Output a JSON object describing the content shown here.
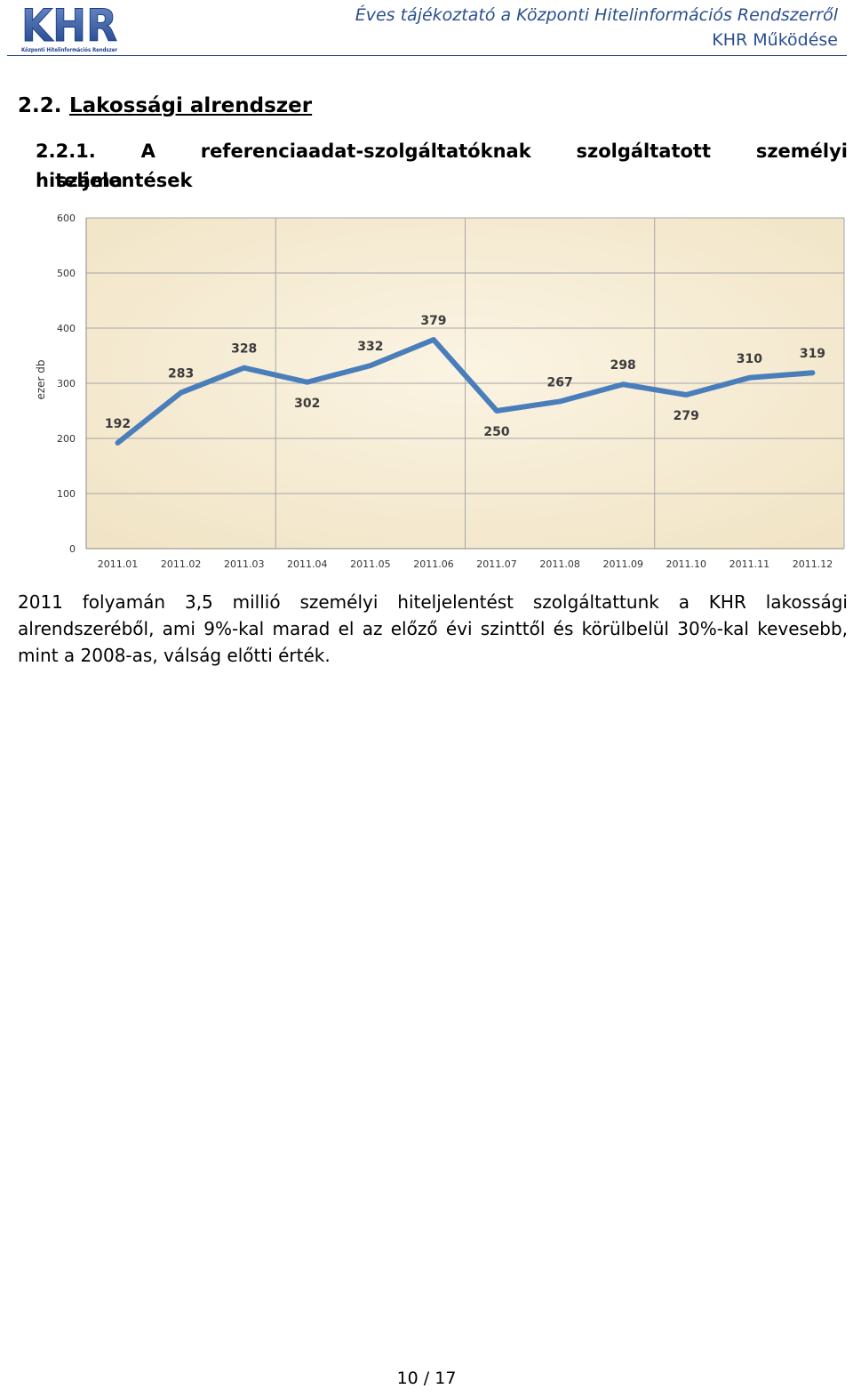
{
  "header": {
    "logo_text": "KHR",
    "logo_subtitle": "Központi Hitelinformációs Rendszer",
    "title": "Éves tájékoztató a Központi Hitelinformációs Rendszerről",
    "subtitle": "KHR Működése"
  },
  "section": {
    "number": "2.2.",
    "title": "Lakossági alrendszer"
  },
  "subsection": {
    "number": "2.2.1.",
    "title_line1": "A referenciaadat-szolgáltatóknak szolgáltatott személyi hiteljelentések",
    "title_line2": "száma"
  },
  "chart_data": {
    "type": "line",
    "title": "",
    "xlabel": "",
    "ylabel": "ezer db",
    "categories": [
      "2011.01",
      "2011.02",
      "2011.03",
      "2011.04",
      "2011.05",
      "2011.06",
      "2011.07",
      "2011.08",
      "2011.09",
      "2011.10",
      "2011.11",
      "2011.12"
    ],
    "values": [
      192,
      283,
      328,
      302,
      332,
      379,
      250,
      267,
      298,
      279,
      310,
      319
    ],
    "ylim": [
      0,
      600
    ],
    "yticks": [
      0,
      100,
      200,
      300,
      400,
      500,
      600
    ],
    "grid": true,
    "legend": "none",
    "line_color": "#4a7ebb",
    "background_color": "#f6ecd6"
  },
  "paragraph": "2011 folyamán 3,5 millió személyi hiteljelentést szolgáltattunk a KHR lakossági alrendszeréből, ami 9%-kal marad el az előző évi szinttől és körülbelül 30%-kal kevesebb, mint a 2008-as, válság előtti érték.",
  "footer": {
    "page": "10 / 17"
  }
}
